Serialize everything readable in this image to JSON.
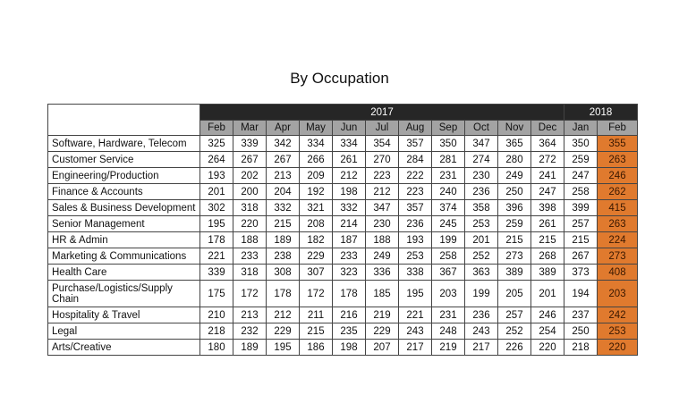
{
  "title": "By Occupation",
  "years": [
    {
      "label": "2017",
      "span": 11
    },
    {
      "label": "2018",
      "span": 2
    }
  ],
  "months": [
    "Feb",
    "Mar",
    "Apr",
    "May",
    "Jun",
    "Jul",
    "Aug",
    "Sep",
    "Oct",
    "Nov",
    "Dec",
    "Jan",
    "Feb"
  ],
  "highlight_color": "#e07a2e",
  "rows": [
    {
      "label": "Software, Hardware, Telecom",
      "values": [
        325,
        339,
        342,
        334,
        334,
        354,
        357,
        350,
        347,
        365,
        364,
        350,
        355
      ]
    },
    {
      "label": "Customer Service",
      "values": [
        264,
        267,
        267,
        266,
        261,
        270,
        284,
        281,
        274,
        280,
        272,
        259,
        263
      ]
    },
    {
      "label": "Engineering/Production",
      "values": [
        193,
        202,
        213,
        209,
        212,
        223,
        222,
        231,
        230,
        249,
        241,
        247,
        246
      ]
    },
    {
      "label": "Finance & Accounts",
      "values": [
        201,
        200,
        204,
        192,
        198,
        212,
        223,
        240,
        236,
        250,
        247,
        258,
        262
      ]
    },
    {
      "label": "Sales & Business Development",
      "values": [
        302,
        318,
        332,
        321,
        332,
        347,
        357,
        374,
        358,
        396,
        398,
        399,
        415
      ]
    },
    {
      "label": "Senior Management",
      "values": [
        195,
        220,
        215,
        208,
        214,
        230,
        236,
        245,
        253,
        259,
        261,
        257,
        263
      ]
    },
    {
      "label": "HR & Admin",
      "values": [
        178,
        188,
        189,
        182,
        187,
        188,
        193,
        199,
        201,
        215,
        215,
        215,
        224
      ]
    },
    {
      "label": "Marketing & Communications",
      "values": [
        221,
        233,
        238,
        229,
        233,
        249,
        253,
        258,
        252,
        273,
        268,
        267,
        273
      ]
    },
    {
      "label": "Health Care",
      "values": [
        339,
        318,
        308,
        307,
        323,
        336,
        338,
        367,
        363,
        389,
        389,
        373,
        408
      ]
    },
    {
      "label": "Purchase/Logistics/Supply Chain",
      "values": [
        175,
        172,
        178,
        172,
        178,
        185,
        195,
        203,
        199,
        205,
        201,
        194,
        203
      ]
    },
    {
      "label": "Hospitality & Travel",
      "values": [
        210,
        213,
        212,
        211,
        216,
        219,
        221,
        231,
        236,
        257,
        246,
        237,
        242
      ]
    },
    {
      "label": "Legal",
      "values": [
        218,
        232,
        229,
        215,
        235,
        229,
        243,
        248,
        243,
        252,
        254,
        250,
        253
      ]
    },
    {
      "label": "Arts/Creative",
      "values": [
        180,
        189,
        195,
        186,
        198,
        207,
        217,
        219,
        217,
        226,
        220,
        218,
        220
      ]
    }
  ]
}
